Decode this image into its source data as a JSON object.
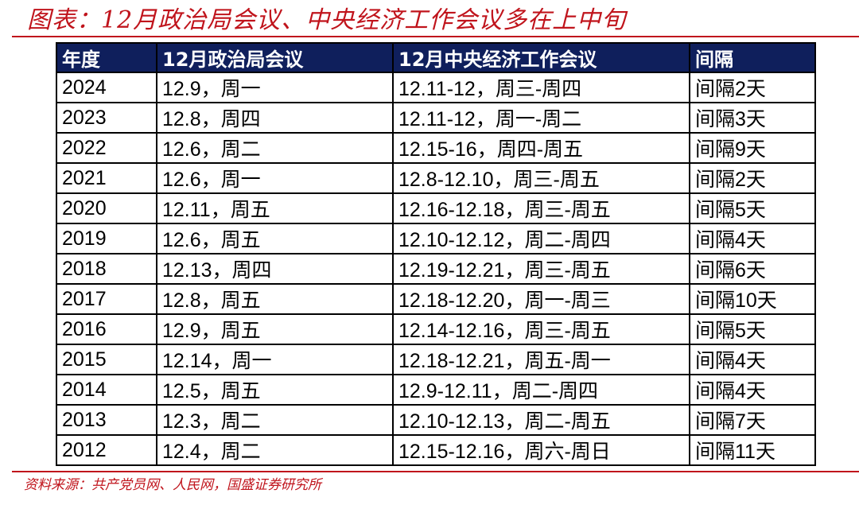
{
  "title": "图表：12月政治局会议、中央经济工作会议多在上中旬",
  "accent_color": "#c0141c",
  "header_color": "#0f1f5c",
  "table": {
    "headers": [
      "年度",
      "12月政治局会议",
      "12月中央经济工作会议",
      "间隔"
    ],
    "rows": [
      [
        "2024",
        "12.9，周一",
        "12.11-12，周三-周四",
        "间隔2天"
      ],
      [
        "2023",
        "12.8，周四",
        "12.11-12，周一-周二",
        "间隔3天"
      ],
      [
        "2022",
        "12.6，周二",
        "12.15-16，周四-周五",
        "间隔9天"
      ],
      [
        "2021",
        "12.6，周一",
        "12.8-12.10，周三-周五",
        "间隔2天"
      ],
      [
        "2020",
        "12.11，周五",
        "12.16-12.18，周三-周五",
        "间隔5天"
      ],
      [
        "2019",
        "12.6，周五",
        "12.10-12.12，周二-周四",
        "间隔4天"
      ],
      [
        "2018",
        "12.13，周四",
        "12.19-12.21，周三-周五",
        "间隔6天"
      ],
      [
        "2017",
        "12.8，周五",
        "12.18-12.20，周一-周三",
        "间隔10天"
      ],
      [
        "2016",
        "12.9，周五",
        "12.14-12.16，周三-周五",
        "间隔5天"
      ],
      [
        "2015",
        "12.14，周一",
        "12.18-12.21，周五-周一",
        "间隔4天"
      ],
      [
        "2014",
        "12.5，周五",
        "12.9-12.11，周二-周四",
        "间隔4天"
      ],
      [
        "2013",
        "12.3，周二",
        "12.10-12.13，周二-周五",
        "间隔7天"
      ],
      [
        "2012",
        "12.4，周二",
        "12.15-12.16，周六-周日",
        "间隔11天"
      ]
    ]
  },
  "source": "资料来源：共产党员网、人民网，国盛证券研究所"
}
